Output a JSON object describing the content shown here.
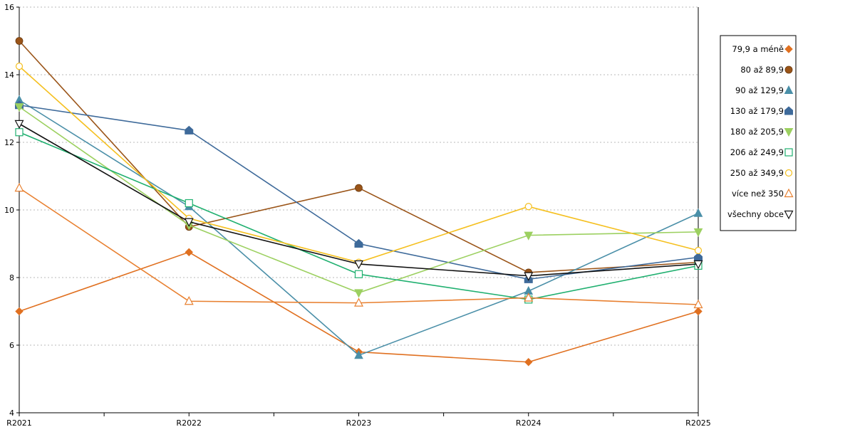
{
  "chart_data": {
    "type": "line",
    "title": "",
    "xlabel": "",
    "ylabel": "",
    "categories": [
      "R2021",
      "R2022",
      "R2023",
      "R2024",
      "R2025"
    ],
    "ylim": [
      4,
      16
    ],
    "yticks": [
      4,
      6,
      8,
      10,
      12,
      14,
      16
    ],
    "grid": "horizontal dotted",
    "legend_position": "right",
    "series": [
      {
        "name": "79,9 a méně",
        "color": "#E07020",
        "marker": "diamond",
        "values": [
          7.0,
          8.75,
          5.8,
          5.5,
          7.0
        ]
      },
      {
        "name": "80 až 89,9",
        "color": "#9A5418",
        "marker": "circle-filled",
        "values": [
          15.0,
          9.5,
          10.65,
          8.15,
          8.45
        ]
      },
      {
        "name": "90 až 129,9",
        "color": "#4A8FA8",
        "marker": "triangle-filled",
        "values": [
          13.25,
          10.1,
          5.7,
          7.6,
          9.9
        ]
      },
      {
        "name": "130 až 179,9",
        "color": "#3E6A9A",
        "marker": "house-filled",
        "values": [
          13.1,
          12.35,
          9.0,
          7.95,
          8.6
        ]
      },
      {
        "name": "180 až 205,9",
        "color": "#9CD060",
        "marker": "triangle-down-filled",
        "values": [
          13.05,
          9.55,
          7.55,
          9.25,
          9.35
        ]
      },
      {
        "name": "206 až 249,9",
        "color": "#20B070",
        "marker": "square-open",
        "values": [
          12.3,
          10.2,
          8.1,
          7.35,
          8.35
        ]
      },
      {
        "name": "250 až 349,9",
        "color": "#F5C020",
        "marker": "circle-open",
        "values": [
          14.25,
          9.75,
          8.45,
          10.1,
          8.8
        ]
      },
      {
        "name": "více než 350",
        "color": "#E88030",
        "marker": "triangle-open",
        "values": [
          10.65,
          7.3,
          7.25,
          7.4,
          7.2
        ]
      },
      {
        "name": "všechny obce",
        "color": "#111111",
        "marker": "triangle-down-open",
        "values": [
          12.55,
          9.65,
          8.4,
          8.05,
          8.4
        ]
      }
    ]
  }
}
